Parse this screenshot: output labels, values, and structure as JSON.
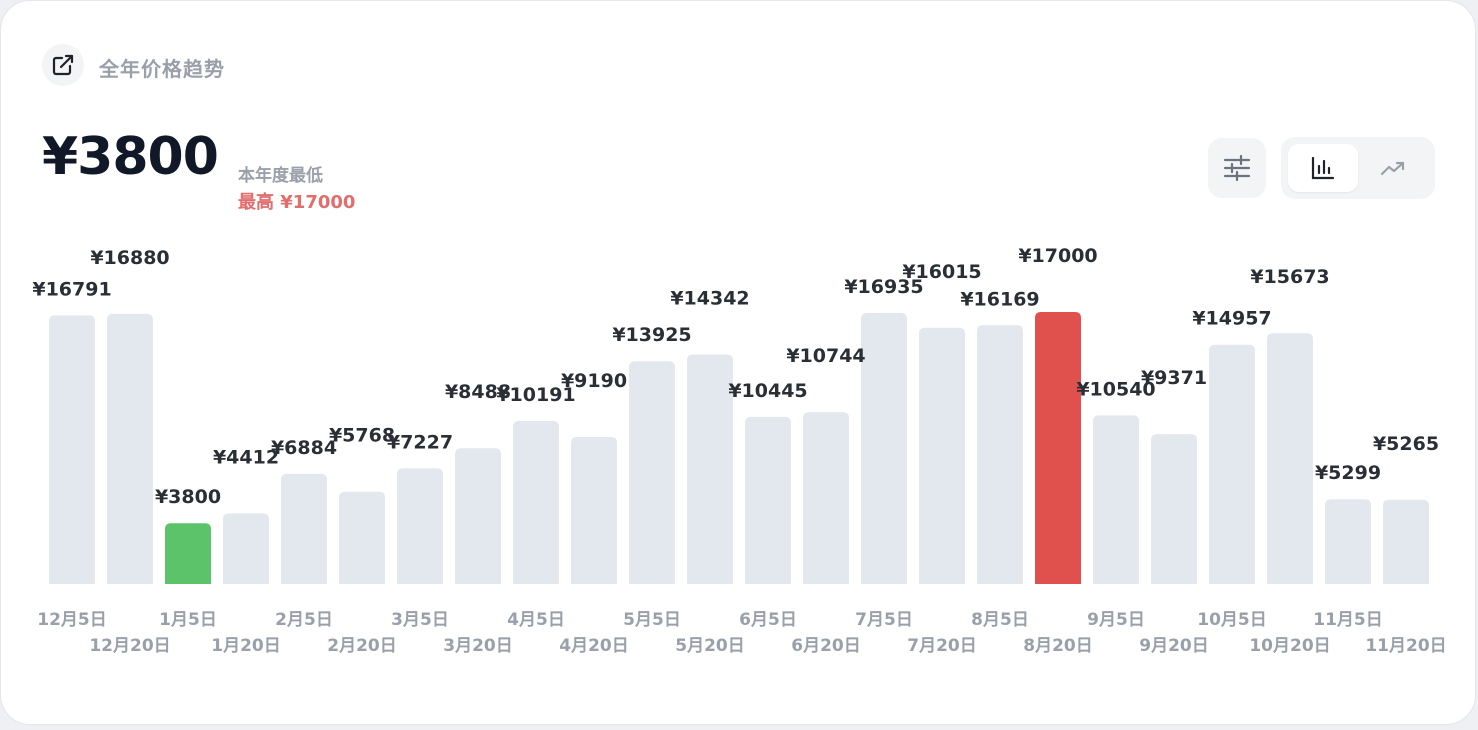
{
  "header": {
    "title": "全年价格趋势",
    "icon": "external-link-icon"
  },
  "summary": {
    "price": "¥3800",
    "low_label": "本年度最低",
    "high_label": "最高 ¥17000"
  },
  "controls": {
    "filter_icon": "sliders-icon",
    "view_options": [
      {
        "name": "bar-chart-icon",
        "active": true
      },
      {
        "name": "trend-line-icon",
        "active": false
      }
    ]
  },
  "colors": {
    "bar": "#e3e8ef",
    "min": "#5cc36a",
    "max": "#e0514d",
    "label": "#2a2f36",
    "tick": "#9aa0aa"
  },
  "chart_data": {
    "type": "bar",
    "title": "全年价格趋势",
    "xlabel": "",
    "ylabel": "",
    "ylim": [
      0,
      17000
    ],
    "grid": false,
    "categories": [
      "12月5日",
      "12月20日",
      "1月5日",
      "1月20日",
      "2月5日",
      "2月20日",
      "3月5日",
      "3月20日",
      "4月5日",
      "4月20日",
      "5月5日",
      "5月20日",
      "6月5日",
      "6月20日",
      "7月5日",
      "7月20日",
      "8月5日",
      "8月20日",
      "9月5日",
      "9月20日",
      "10月5日",
      "10月20日",
      "11月5日",
      "11月20日"
    ],
    "values": [
      16791,
      16880,
      3800,
      4412,
      6884,
      5768,
      7227,
      8488,
      10191,
      9190,
      13925,
      14342,
      10445,
      10744,
      16935,
      16015,
      16169,
      17000,
      10540,
      9371,
      14957,
      15673,
      5299,
      5265
    ],
    "data_labels": [
      "¥16791",
      "¥16880",
      "¥3800",
      "¥4412",
      "¥6884",
      "¥5768",
      "¥7227",
      "¥8488",
      "¥10191",
      "¥9190",
      "¥13925",
      "¥14342",
      "¥10445",
      "¥10744",
      "¥16935",
      "¥16015",
      "¥16169",
      "¥17000",
      "¥10540",
      "¥9371",
      "¥14957",
      "¥15673",
      "¥5299",
      "¥5265"
    ],
    "min_index": 2,
    "max_index": 17
  }
}
